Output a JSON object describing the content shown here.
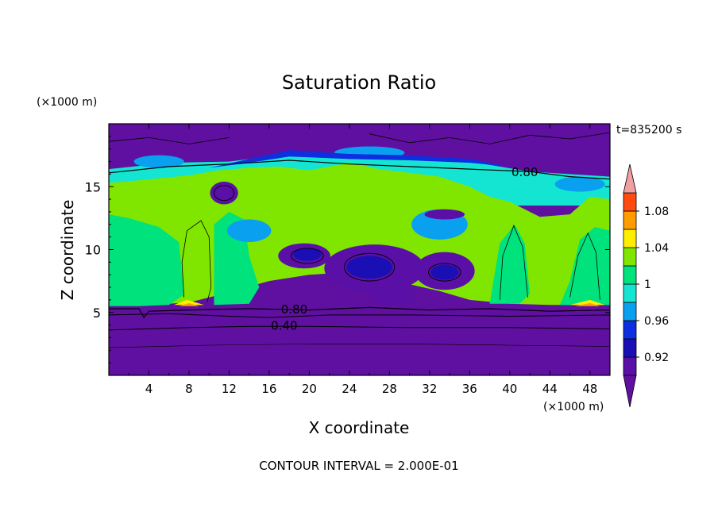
{
  "chart_data": {
    "type": "heatmap",
    "title": "Saturation Ratio",
    "xlabel": "X coordinate",
    "ylabel": "Z coordinate",
    "x_unit": "(×1000 m)",
    "y_unit": "(×1000 m)",
    "time_label": "t=835200 s",
    "footer": "CONTOUR INTERVAL = 2.000E-01",
    "xlim": [
      0,
      50
    ],
    "ylim": [
      0,
      20
    ],
    "x_ticks": [
      4,
      8,
      12,
      16,
      20,
      24,
      28,
      32,
      36,
      40,
      44,
      48
    ],
    "y_ticks": [
      5,
      10,
      15
    ],
    "contour_labels": [
      {
        "text": "0.80",
        "x": 41.5,
        "y": 16.2
      },
      {
        "text": "0.80",
        "x": 18.5,
        "y": 5.3
      },
      {
        "text": "0.40",
        "x": 17.5,
        "y": 4.0
      }
    ],
    "colorbar": {
      "labels": [
        "1.08",
        "1.04",
        "1",
        "0.96",
        "0.92"
      ],
      "label_values": [
        1.08,
        1.04,
        1.0,
        0.96,
        0.92
      ],
      "levels": [
        0.9,
        0.92,
        0.94,
        0.96,
        0.98,
        1.0,
        1.02,
        1.04,
        1.06,
        1.08,
        1.1
      ],
      "colors": [
        "#5a0fa6",
        "#1a0fb4",
        "#0d2fe0",
        "#0aa0f0",
        "#14e5d2",
        "#00e37c",
        "#80e600",
        "#ffee00",
        "#ff9d00",
        "#ff4a10",
        "#e8001e"
      ],
      "under_color": "#6010a0",
      "over_color": "#f0a0a0"
    }
  }
}
